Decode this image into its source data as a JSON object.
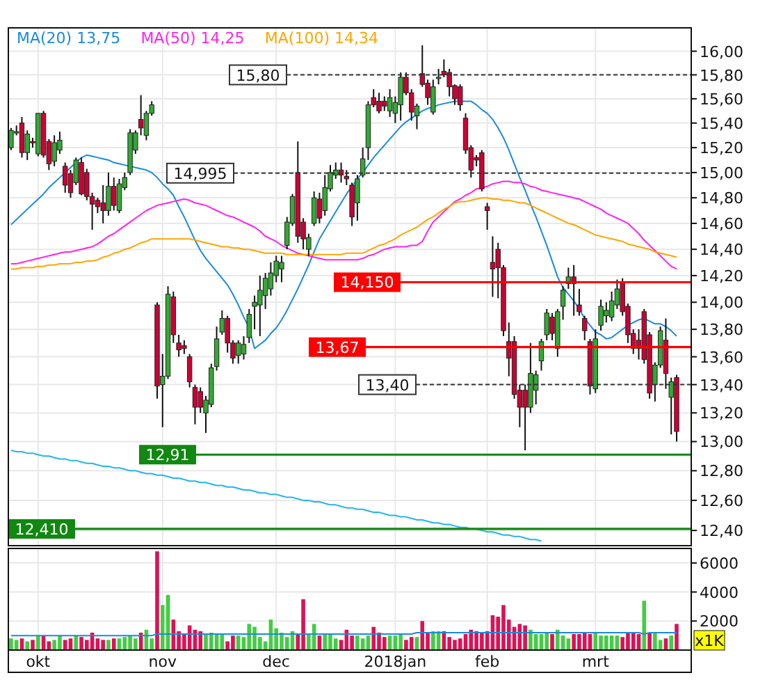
{
  "chart_data": [
    {
      "type": "candlestick",
      "log": true,
      "grid": true,
      "legend": "top left",
      "tick_labels": "y",
      "categories": [
        null,
        null,
        null,
        null,
        null,
        null,
        null,
        null,
        null,
        null,
        null,
        null,
        null,
        null,
        null,
        null,
        null,
        null,
        null,
        null,
        null,
        null,
        null,
        null,
        null,
        null,
        null,
        null,
        null,
        null,
        null,
        null,
        null,
        null,
        null,
        null,
        null,
        null,
        null,
        null,
        null,
        null,
        null,
        null,
        null,
        null,
        null,
        null,
        null,
        null,
        null,
        null,
        null,
        null,
        null,
        null,
        null,
        null,
        null,
        null,
        null,
        null,
        null,
        null,
        null,
        null,
        null,
        null,
        null,
        null,
        null,
        null,
        null,
        null,
        null,
        null,
        null,
        null,
        null,
        null,
        null,
        null,
        null,
        null,
        null,
        null,
        null,
        null,
        null,
        null,
        null,
        null,
        null,
        null,
        null,
        null,
        null,
        null,
        null,
        null,
        null,
        null,
        null,
        null,
        null,
        null,
        null,
        null,
        null,
        null,
        null,
        null,
        null,
        null,
        null,
        null,
        null,
        null,
        null,
        null,
        null,
        null,
        null,
        null
      ],
      "ylim": [
        12.3,
        16.2
      ],
      "yticks": [
        {
          "value": 12.4,
          "label": "12,40"
        },
        {
          "value": 12.6,
          "label": "12,60"
        },
        {
          "value": 12.8,
          "label": "12,80"
        },
        {
          "value": 13,
          "label": "13,00"
        },
        {
          "value": 13.2,
          "label": "13,20"
        },
        {
          "value": 13.4,
          "label": "13,40"
        },
        {
          "value": 13.6,
          "label": "13,60"
        },
        {
          "value": 13.8,
          "label": "13,80"
        },
        {
          "value": 14,
          "label": "14,00"
        },
        {
          "value": 14.2,
          "label": "14,20"
        },
        {
          "value": 14.4,
          "label": "14,40"
        },
        {
          "value": 14.6,
          "label": "14,60"
        },
        {
          "value": 14.8,
          "label": "14,80"
        },
        {
          "value": 15,
          "label": "15,00"
        },
        {
          "value": 15.2,
          "label": "15,20"
        },
        {
          "value": 15.4,
          "label": "15,40"
        },
        {
          "value": 15.6,
          "label": "15,60"
        },
        {
          "value": 15.8,
          "label": "15,80"
        },
        {
          "value": 16,
          "label": "16,00"
        }
      ],
      "ohlc": [
        [
          15.2,
          15.36,
          15.18,
          15.34
        ],
        [
          15.32,
          15.38,
          15.3,
          15.33
        ],
        [
          15.4,
          15.45,
          15.12,
          15.16
        ],
        [
          15.16,
          15.34,
          15.1,
          15.31
        ],
        [
          15.25,
          15.28,
          15.2,
          15.24
        ],
        [
          15.15,
          15.48,
          15.13,
          15.48
        ],
        [
          15.48,
          15.5,
          15.12,
          15.14
        ],
        [
          15.25,
          15.27,
          15.02,
          15.07
        ],
        [
          15.09,
          15.3,
          15.05,
          15.24
        ],
        [
          15.18,
          15.33,
          15.15,
          15.26
        ],
        [
          15.05,
          15.08,
          14.84,
          14.9
        ],
        [
          14.99,
          15.02,
          14.8,
          14.84
        ],
        [
          14.92,
          15.12,
          14.9,
          15.1
        ],
        [
          15.08,
          15.12,
          14.82,
          14.83
        ],
        [
          15.0,
          15.03,
          14.78,
          14.81
        ],
        [
          14.81,
          14.84,
          14.55,
          14.75
        ],
        [
          14.78,
          14.8,
          14.68,
          14.73
        ],
        [
          14.76,
          14.9,
          14.6,
          14.7
        ],
        [
          14.7,
          15.0,
          14.66,
          14.89
        ],
        [
          14.89,
          14.96,
          14.7,
          14.74
        ],
        [
          14.7,
          14.95,
          14.68,
          14.91
        ],
        [
          14.88,
          15.0,
          14.86,
          14.96
        ],
        [
          15.0,
          15.35,
          14.98,
          15.32
        ],
        [
          15.18,
          15.34,
          15.15,
          15.32
        ],
        [
          15.43,
          15.63,
          15.3,
          15.36
        ],
        [
          15.3,
          15.5,
          15.26,
          15.48
        ],
        [
          15.48,
          15.58,
          15.46,
          15.55
        ],
        [
          13.98,
          14.0,
          13.3,
          13.39
        ],
        [
          13.4,
          13.62,
          13.1,
          13.46
        ],
        [
          13.46,
          14.12,
          13.44,
          14.06
        ],
        [
          14.04,
          14.08,
          13.7,
          13.76
        ],
        [
          13.7,
          13.76,
          13.6,
          13.65
        ],
        [
          13.68,
          13.72,
          13.62,
          13.66
        ],
        [
          13.6,
          13.62,
          13.38,
          13.42
        ],
        [
          13.38,
          13.4,
          13.12,
          13.24
        ],
        [
          13.35,
          13.38,
          13.2,
          13.24
        ],
        [
          13.2,
          13.32,
          13.06,
          13.29
        ],
        [
          13.26,
          13.55,
          13.24,
          13.52
        ],
        [
          13.53,
          13.82,
          13.5,
          13.73
        ],
        [
          13.78,
          13.94,
          13.76,
          13.88
        ],
        [
          13.88,
          13.9,
          13.63,
          13.7
        ],
        [
          13.7,
          13.72,
          13.55,
          13.59
        ],
        [
          13.61,
          13.72,
          13.55,
          13.7
        ],
        [
          13.62,
          13.75,
          13.58,
          13.69
        ],
        [
          13.74,
          13.95,
          13.7,
          13.91
        ],
        [
          13.97,
          14.05,
          13.8,
          14.0
        ],
        [
          13.98,
          14.2,
          13.75,
          14.09
        ],
        [
          14.05,
          14.22,
          13.95,
          14.18
        ],
        [
          14.1,
          14.3,
          14.05,
          14.22
        ],
        [
          14.2,
          14.35,
          14.15,
          14.31
        ],
        [
          14.25,
          14.35,
          14.15,
          14.3
        ],
        [
          14.43,
          14.65,
          14.4,
          14.61
        ],
        [
          14.6,
          14.83,
          14.58,
          14.81
        ],
        [
          15.0,
          15.25,
          14.45,
          14.5
        ],
        [
          14.61,
          14.64,
          14.4,
          14.48
        ],
        [
          14.4,
          14.52,
          14.35,
          14.49
        ],
        [
          14.6,
          14.85,
          14.58,
          14.8
        ],
        [
          14.79,
          14.84,
          14.6,
          14.64
        ],
        [
          14.7,
          14.98,
          14.66,
          14.88
        ],
        [
          14.87,
          15.06,
          14.85,
          15.0
        ],
        [
          14.98,
          15.08,
          14.95,
          15.02
        ],
        [
          15.02,
          15.08,
          14.92,
          14.98
        ],
        [
          14.97,
          15.02,
          14.9,
          14.95
        ],
        [
          14.9,
          14.92,
          14.58,
          14.65
        ],
        [
          14.76,
          14.98,
          14.62,
          14.95
        ],
        [
          14.98,
          15.2,
          14.96,
          15.11
        ],
        [
          15.2,
          15.58,
          15.1,
          15.55
        ],
        [
          15.61,
          15.68,
          15.53,
          15.55
        ],
        [
          15.58,
          15.65,
          15.48,
          15.5
        ],
        [
          15.58,
          15.62,
          15.5,
          15.54
        ],
        [
          15.5,
          15.68,
          15.45,
          15.61
        ],
        [
          15.48,
          15.62,
          15.4,
          15.57
        ],
        [
          15.55,
          15.82,
          15.42,
          15.78
        ],
        [
          15.78,
          15.82,
          15.63,
          15.65
        ],
        [
          15.65,
          15.68,
          15.42,
          15.49
        ],
        [
          15.46,
          15.56,
          15.35,
          15.54
        ],
        [
          15.81,
          16.05,
          15.7,
          15.72
        ],
        [
          15.73,
          15.76,
          15.55,
          15.61
        ],
        [
          15.49,
          15.76,
          15.47,
          15.7
        ],
        [
          15.77,
          15.85,
          15.72,
          15.78
        ],
        [
          15.83,
          15.93,
          15.78,
          15.8
        ],
        [
          15.82,
          15.85,
          15.62,
          15.7
        ],
        [
          15.71,
          15.72,
          15.55,
          15.6
        ],
        [
          15.7,
          15.72,
          15.5,
          15.55
        ],
        [
          15.44,
          15.48,
          15.15,
          15.18
        ],
        [
          15.2,
          15.22,
          14.96,
          15.02
        ],
        [
          15.12,
          15.14,
          15.05,
          15.1
        ],
        [
          15.16,
          15.18,
          14.85,
          14.87
        ],
        [
          14.73,
          14.76,
          14.55,
          14.7
        ],
        [
          14.3,
          14.5,
          14.04,
          14.25
        ],
        [
          14.4,
          14.45,
          14.03,
          14.26
        ],
        [
          14.26,
          14.28,
          13.75,
          13.79
        ],
        [
          13.71,
          13.85,
          13.46,
          13.59
        ],
        [
          13.71,
          13.75,
          13.3,
          13.33
        ],
        [
          13.36,
          13.4,
          13.1,
          13.24
        ],
        [
          13.36,
          13.4,
          12.94,
          13.24
        ],
        [
          13.24,
          13.7,
          13.2,
          13.48
        ],
        [
          13.36,
          13.5,
          13.26,
          13.47
        ],
        [
          13.57,
          13.73,
          13.5,
          13.71
        ],
        [
          13.76,
          13.95,
          13.72,
          13.92
        ],
        [
          13.89,
          13.92,
          13.72,
          13.77
        ],
        [
          13.66,
          13.95,
          13.6,
          13.93
        ],
        [
          13.97,
          14.12,
          13.87,
          14.09
        ],
        [
          14.14,
          14.26,
          14.1,
          14.19
        ],
        [
          14.19,
          14.28,
          13.9,
          14.14
        ],
        [
          13.98,
          14.1,
          13.9,
          13.93
        ],
        [
          13.88,
          13.9,
          13.72,
          13.79
        ],
        [
          13.71,
          13.73,
          13.33,
          13.39
        ],
        [
          13.37,
          13.8,
          13.34,
          13.73
        ],
        [
          13.83,
          14.02,
          13.79,
          13.97
        ],
        [
          13.9,
          14.0,
          13.85,
          13.94
        ],
        [
          13.89,
          14.08,
          13.86,
          14.01
        ],
        [
          13.98,
          14.17,
          13.95,
          14.1
        ],
        [
          14.15,
          14.18,
          13.9,
          13.93
        ],
        [
          13.97,
          13.99,
          13.7,
          13.76
        ],
        [
          13.77,
          13.8,
          13.62,
          13.66
        ],
        [
          13.72,
          13.8,
          13.58,
          13.66
        ],
        [
          13.93,
          13.95,
          13.55,
          13.58
        ],
        [
          13.76,
          13.78,
          13.3,
          13.34
        ],
        [
          13.4,
          13.56,
          13.28,
          13.54
        ],
        [
          13.54,
          13.82,
          13.52,
          13.79
        ],
        [
          13.72,
          13.88,
          13.37,
          13.48
        ],
        [
          13.31,
          13.45,
          13.05,
          13.42
        ],
        [
          13.45,
          13.47,
          13.0,
          13.07
        ]
      ],
      "series": [
        {
          "type": "line",
          "name": "MA(20) 13,75",
          "color": "#1a8ae0",
          "values": [
            14.59,
            14.63,
            14.67,
            14.71,
            14.75,
            14.79,
            14.83,
            14.88,
            14.92,
            14.96,
            15.0,
            15.04,
            15.08,
            15.12,
            15.14,
            15.13,
            15.12,
            15.11,
            15.1,
            15.08,
            15.07,
            15.06,
            15.05,
            15.04,
            15.03,
            15.02,
            15.0,
            14.96,
            14.91,
            14.87,
            14.82,
            14.73,
            14.65,
            14.56,
            14.47,
            14.39,
            14.33,
            14.28,
            14.23,
            14.18,
            14.13,
            14.06,
            13.98,
            13.89,
            13.81,
            13.66,
            13.69,
            13.72,
            13.77,
            13.81,
            13.87,
            13.94,
            14.02,
            14.1,
            14.19,
            14.28,
            14.38,
            14.48,
            14.55,
            14.62,
            14.69,
            14.76,
            14.83,
            14.89,
            14.95,
            15.0,
            15.06,
            15.12,
            15.17,
            15.22,
            15.27,
            15.32,
            15.37,
            15.41,
            15.44,
            15.47,
            15.5,
            15.52,
            15.53,
            15.55,
            15.56,
            15.57,
            15.58,
            15.58,
            15.58,
            15.58,
            15.55,
            15.51,
            15.48,
            15.43,
            15.36,
            15.28,
            15.18,
            15.07,
            14.96,
            14.86,
            14.75,
            14.65,
            14.54,
            14.43,
            14.31,
            14.19,
            14.11,
            14.06,
            14.01,
            13.95,
            13.88,
            13.83,
            13.78,
            13.76,
            13.73,
            13.74,
            13.77,
            13.8,
            13.83,
            13.85,
            13.87,
            13.88,
            13.86,
            13.84,
            13.84,
            13.82,
            13.79,
            13.75
          ]
        },
        {
          "type": "line",
          "name": "MA(50) 14,25",
          "color": "#ff22ee",
          "values": [
            14.29,
            14.29,
            14.3,
            14.31,
            14.32,
            14.33,
            14.34,
            14.35,
            14.36,
            14.37,
            14.38,
            14.38,
            14.39,
            14.4,
            14.41,
            14.42,
            14.44,
            14.47,
            14.5,
            14.52,
            14.55,
            14.58,
            14.61,
            14.64,
            14.67,
            14.7,
            14.72,
            14.74,
            14.75,
            14.76,
            14.77,
            14.78,
            14.79,
            14.78,
            14.76,
            14.75,
            14.74,
            14.72,
            14.7,
            14.68,
            14.66,
            14.65,
            14.63,
            14.61,
            14.59,
            14.57,
            14.54,
            14.5,
            14.48,
            14.46,
            14.43,
            14.41,
            14.39,
            14.37,
            14.36,
            14.35,
            14.34,
            14.33,
            14.32,
            14.32,
            14.32,
            14.32,
            14.32,
            14.32,
            14.32,
            14.33,
            14.35,
            14.36,
            14.38,
            14.4,
            14.41,
            14.42,
            14.42,
            14.42,
            14.43,
            14.43,
            14.46,
            14.54,
            14.61,
            14.65,
            14.69,
            14.73,
            14.77,
            14.79,
            14.82,
            14.84,
            14.87,
            14.88,
            14.89,
            14.91,
            14.92,
            14.93,
            14.93,
            14.92,
            14.92,
            14.91,
            14.89,
            14.88,
            14.86,
            14.85,
            14.84,
            14.83,
            14.82,
            14.81,
            14.8,
            14.79,
            14.77,
            14.75,
            14.73,
            14.71,
            14.68,
            14.66,
            14.64,
            14.62,
            14.6,
            14.56,
            14.52,
            14.47,
            14.43,
            14.39,
            14.35,
            14.31,
            14.27,
            14.25
          ]
        },
        {
          "type": "line",
          "name": "MA(100) 14,34",
          "color": "#ffa500",
          "values": [
            14.25,
            14.25,
            14.26,
            14.26,
            14.26,
            14.27,
            14.27,
            14.28,
            14.28,
            14.29,
            14.29,
            14.29,
            14.3,
            14.3,
            14.31,
            14.31,
            14.32,
            14.34,
            14.35,
            14.37,
            14.38,
            14.4,
            14.41,
            14.43,
            14.45,
            14.46,
            14.48,
            14.48,
            14.48,
            14.48,
            14.48,
            14.48,
            14.48,
            14.48,
            14.47,
            14.46,
            14.45,
            14.44,
            14.43,
            14.42,
            14.42,
            14.41,
            14.41,
            14.4,
            14.4,
            14.39,
            14.38,
            14.37,
            14.37,
            14.37,
            14.37,
            14.36,
            14.36,
            14.36,
            14.36,
            14.36,
            14.36,
            14.36,
            14.36,
            14.36,
            14.36,
            14.36,
            14.37,
            14.37,
            14.37,
            14.37,
            14.39,
            14.41,
            14.43,
            14.44,
            14.46,
            14.48,
            14.51,
            14.53,
            14.55,
            14.57,
            14.6,
            14.63,
            14.65,
            14.68,
            14.71,
            14.73,
            14.76,
            14.77,
            14.77,
            14.78,
            14.79,
            14.8,
            14.8,
            14.79,
            14.79,
            14.78,
            14.78,
            14.77,
            14.76,
            14.76,
            14.74,
            14.72,
            14.7,
            14.68,
            14.66,
            14.64,
            14.62,
            14.6,
            14.59,
            14.57,
            14.55,
            14.53,
            14.51,
            14.5,
            14.49,
            14.48,
            14.47,
            14.46,
            14.44,
            14.43,
            14.42,
            14.41,
            14.4,
            14.38,
            14.37,
            14.36,
            14.35,
            14.34
          ]
        },
        {
          "type": "line",
          "color": "#22b4ee",
          "values": [
            12.94,
            12.93,
            12.93,
            12.92,
            12.92,
            12.91,
            12.9,
            12.9,
            12.89,
            12.88,
            12.88,
            12.87,
            12.87,
            12.86,
            12.85,
            12.85,
            12.84,
            12.83,
            12.83,
            12.82,
            12.82,
            12.81,
            12.8,
            12.8,
            12.79,
            12.78,
            12.78,
            12.77,
            12.77,
            12.76,
            12.75,
            12.75,
            12.74,
            12.73,
            12.73,
            12.72,
            12.72,
            12.71,
            12.7,
            12.7,
            12.69,
            12.69,
            12.68,
            12.67,
            12.67,
            12.66,
            12.65,
            12.65,
            12.64,
            12.64,
            12.63,
            12.62,
            12.62,
            12.61,
            12.6,
            12.6,
            12.59,
            12.59,
            12.58,
            12.57,
            12.57,
            12.56,
            12.55,
            12.55,
            12.54,
            12.54,
            12.53,
            12.52,
            12.52,
            12.51,
            12.5,
            12.5,
            12.49,
            12.49,
            12.48,
            12.47,
            12.47,
            12.46,
            12.45,
            12.45,
            12.44,
            12.44,
            12.43,
            12.42,
            12.42,
            12.41,
            12.41,
            12.4,
            12.39,
            12.39,
            12.38,
            12.37,
            12.37,
            12.36,
            12.36,
            12.35,
            12.34,
            12.34,
            12.33,
            null,
            null,
            null,
            null,
            null,
            null,
            null,
            null,
            null,
            null,
            null,
            null,
            null,
            null,
            null,
            null,
            null,
            null,
            null,
            null,
            null,
            null,
            null,
            null,
            null
          ]
        }
      ],
      "ref_lines": [
        {
          "axis": "y",
          "value": 15.8,
          "label": "15,80",
          "color": "#333333",
          "line_style": "dashed"
        },
        {
          "axis": "y",
          "value": 14.995,
          "label": "14,995",
          "color": "#333333",
          "line_style": "dashed"
        },
        {
          "axis": "y",
          "value": 14.15,
          "label": "14,150",
          "color": "#ff0000",
          "line_style": "solid"
        },
        {
          "axis": "y",
          "value": 13.67,
          "label": "13,67",
          "color": "#ff0000",
          "line_style": "solid"
        },
        {
          "axis": "y",
          "value": 13.4,
          "label": "13,40",
          "color": "#333333",
          "line_style": "dashed"
        },
        {
          "axis": "y",
          "value": 12.91,
          "label": "12,91",
          "color": "#118811",
          "line_style": "solid"
        },
        {
          "axis": "y",
          "value": 12.41,
          "label": "12,410",
          "color": "#118811",
          "line_style": "solid"
        }
      ]
    },
    {
      "type": "bar",
      "grid": true,
      "ylabel": "x1K",
      "categories": [
        null,
        null,
        null,
        null,
        null,
        "okt",
        null,
        null,
        null,
        null,
        null,
        null,
        null,
        null,
        null,
        null,
        null,
        null,
        null,
        null,
        null,
        null,
        null,
        null,
        null,
        null,
        null,
        null,
        "nov",
        null,
        null,
        null,
        null,
        null,
        null,
        null,
        null,
        null,
        null,
        null,
        null,
        null,
        null,
        null,
        null,
        null,
        null,
        null,
        null,
        "dec",
        null,
        null,
        null,
        null,
        null,
        null,
        null,
        null,
        null,
        null,
        null,
        null,
        null,
        null,
        null,
        null,
        null,
        null,
        null,
        null,
        null,
        "2018jan",
        null,
        null,
        null,
        null,
        null,
        null,
        null,
        null,
        null,
        null,
        null,
        null,
        null,
        null,
        null,
        null,
        "feb",
        null,
        null,
        null,
        null,
        null,
        null,
        null,
        null,
        null,
        null,
        null,
        null,
        null,
        null,
        null,
        null,
        null,
        null,
        null,
        "mrt",
        null,
        null,
        null,
        null,
        null,
        null,
        null,
        null,
        null,
        null,
        null,
        null,
        null,
        null,
        null
      ],
      "ylim": [
        0,
        7000
      ],
      "yticks": [
        2000,
        4000,
        6000
      ],
      "series": [
        {
          "type": "bar",
          "values": [
            800,
            700,
            800,
            600,
            700,
            1000,
            1000,
            600,
            700,
            1000,
            700,
            800,
            1000,
            900,
            700,
            1200,
            800,
            700,
            700,
            800,
            800,
            900,
            1000,
            800,
            1200,
            1400,
            800,
            6800,
            3100,
            3800,
            2100,
            1300,
            1100,
            1700,
            1400,
            1300,
            1100,
            1200,
            1100,
            1100,
            600,
            1000,
            1000,
            900,
            1800,
            1600,
            900,
            600,
            2100,
            1500,
            1200,
            900,
            1300,
            1100,
            3500,
            1100,
            1800,
            1000,
            1100,
            1100,
            800,
            700,
            1400,
            1000,
            1000,
            800,
            1000,
            1600,
            1200,
            900,
            1000,
            1000,
            1100,
            700,
            900,
            900,
            2000,
            1200,
            1300,
            1300,
            1300,
            900,
            700,
            800,
            1100,
            1400,
            1300,
            1200,
            1300,
            2400,
            2300,
            3100,
            2100,
            1600,
            1800,
            1700,
            1400,
            1100,
            1100,
            1200,
            1100,
            1400,
            1000,
            800,
            1100,
            1100,
            1200,
            1100,
            1200,
            1000,
            1000,
            1000,
            1000,
            900,
            1200,
            1200,
            1100,
            3400,
            1200,
            1200,
            700,
            800,
            1000,
            1800
          ],
          "colors": [
            "#44cc44",
            "#44cc44",
            "#dd1155",
            "#44cc44",
            "#dd1155",
            "#44cc44",
            "#dd1155",
            "#dd1155",
            "#44cc44",
            "#44cc44",
            "#dd1155",
            "#dd1155",
            "#44cc44",
            "#dd1155",
            "#dd1155",
            "#dd1155",
            "#dd1155",
            "#dd1155",
            "#44cc44",
            "#dd1155",
            "#44cc44",
            "#44cc44",
            "#44cc44",
            "#44cc44",
            "#dd1155",
            "#44cc44",
            "#44cc44",
            "#dd1155",
            "#44cc44",
            "#44cc44",
            "#dd1155",
            "#dd1155",
            "#dd1155",
            "#dd1155",
            "#dd1155",
            "#dd1155",
            "#44cc44",
            "#44cc44",
            "#44cc44",
            "#44cc44",
            "#dd1155",
            "#dd1155",
            "#44cc44",
            "#44cc44",
            "#44cc44",
            "#44cc44",
            "#44cc44",
            "#44cc44",
            "#44cc44",
            "#44cc44",
            "#44cc44",
            "#44cc44",
            "#44cc44",
            "#dd1155",
            "#dd1155",
            "#44cc44",
            "#44cc44",
            "#dd1155",
            "#44cc44",
            "#44cc44",
            "#44cc44",
            "#dd1155",
            "#dd1155",
            "#dd1155",
            "#44cc44",
            "#44cc44",
            "#44cc44",
            "#dd1155",
            "#dd1155",
            "#dd1155",
            "#44cc44",
            "#44cc44",
            "#44cc44",
            "#dd1155",
            "#dd1155",
            "#44cc44",
            "#dd1155",
            "#dd1155",
            "#44cc44",
            "#44cc44",
            "#dd1155",
            "#dd1155",
            "#dd1155",
            "#dd1155",
            "#dd1155",
            "#dd1155",
            "#dd1155",
            "#dd1155",
            "#dd1155",
            "#dd1155",
            "#dd1155",
            "#dd1155",
            "#dd1155",
            "#dd1155",
            "#dd1155",
            "#dd1155",
            "#44cc44",
            "#44cc44",
            "#44cc44",
            "#44cc44",
            "#dd1155",
            "#44cc44",
            "#44cc44",
            "#44cc44",
            "#dd1155",
            "#dd1155",
            "#dd1155",
            "#dd1155",
            "#44cc44",
            "#44cc44",
            "#44cc44",
            "#44cc44",
            "#44cc44",
            "#dd1155",
            "#dd1155",
            "#dd1155",
            "#dd1155",
            "#44cc44",
            "#dd1155",
            "#44cc44",
            "#44cc44",
            "#dd1155",
            "#44cc44",
            "#dd1155"
          ]
        },
        {
          "type": "line",
          "color": "#1a8ae0",
          "values": [
            1000,
            1000,
            1000,
            1000,
            1000,
            1000,
            1000,
            1000,
            1000,
            1000,
            1000,
            1000,
            1000,
            1000,
            1000,
            1000,
            1000,
            1000,
            1000,
            1000,
            1000,
            1000,
            1000,
            1000,
            1000,
            1000,
            1000,
            1100,
            1100,
            1100,
            1100,
            1100,
            1100,
            1100,
            1100,
            1100,
            1100,
            1100,
            1100,
            1100,
            1100,
            1100,
            1100,
            1100,
            1100,
            1100,
            1100,
            1100,
            1100,
            1100,
            1100,
            1100,
            1100,
            1100,
            1100,
            1100,
            1100,
            1100,
            1100,
            1100,
            1100,
            1100,
            1100,
            1100,
            1100,
            1100,
            1100,
            1100,
            1100,
            1100,
            1100,
            1100,
            1100,
            1100,
            1100,
            1200,
            1200,
            1200,
            1200,
            1200,
            1200,
            1200,
            1200,
            1200,
            1200,
            1200,
            1200,
            1200,
            1200,
            1200,
            1200,
            1200,
            1200,
            1200,
            1200,
            1200,
            1200,
            1200,
            1200,
            1200,
            1200,
            1200,
            1200,
            1200,
            1200,
            1200,
            1200,
            1200,
            1200,
            1200,
            1200,
            1200,
            1200,
            1200,
            1200,
            1200,
            1200,
            1100,
            1200,
            1200,
            1200,
            1200,
            1200,
            1200
          ]
        }
      ]
    }
  ]
}
